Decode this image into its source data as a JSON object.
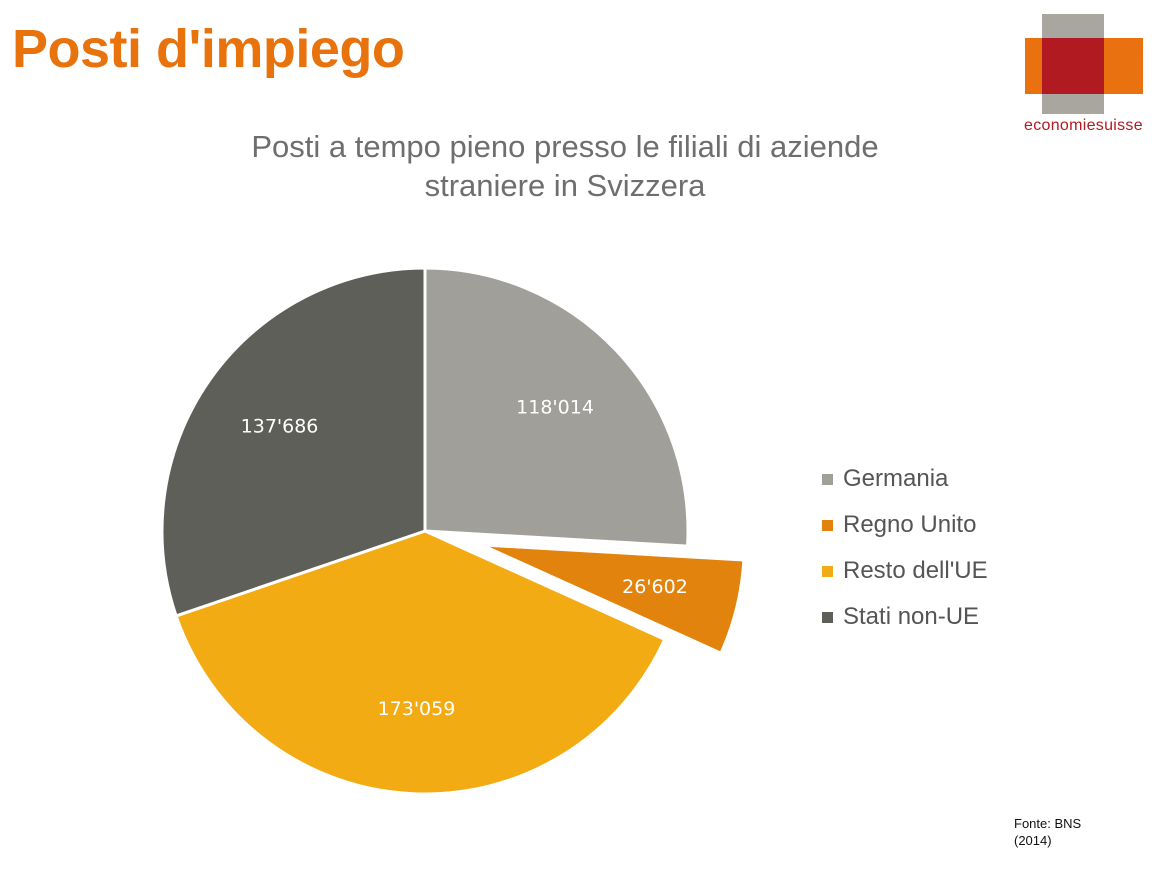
{
  "header": {
    "title": "Posti d'impiego"
  },
  "logo": {
    "text": "economiesuisse"
  },
  "source": {
    "line1": "Fonte: BNS",
    "line2": "(2014)"
  },
  "chart_data": {
    "type": "pie",
    "title": "Posti a tempo pieno presso le filiali di aziende straniere in Svizzera",
    "legend_position": "right",
    "exploded_slice": "Regno Unito",
    "start_angle": "12 o'clock, clockwise",
    "slices": [
      {
        "name": "Germania",
        "value": 118014,
        "label": "118'014",
        "color": "#a19f99"
      },
      {
        "name": "Regno Unito",
        "value": 26602,
        "label": "26'602",
        "color": "#e2830e"
      },
      {
        "name": "Resto dell'UE",
        "value": 173059,
        "label": "173'059",
        "color": "#f2ab12"
      },
      {
        "name": "Stati non-UE",
        "value": 137686,
        "label": "137'686",
        "color": "#5f5f5a"
      }
    ]
  }
}
